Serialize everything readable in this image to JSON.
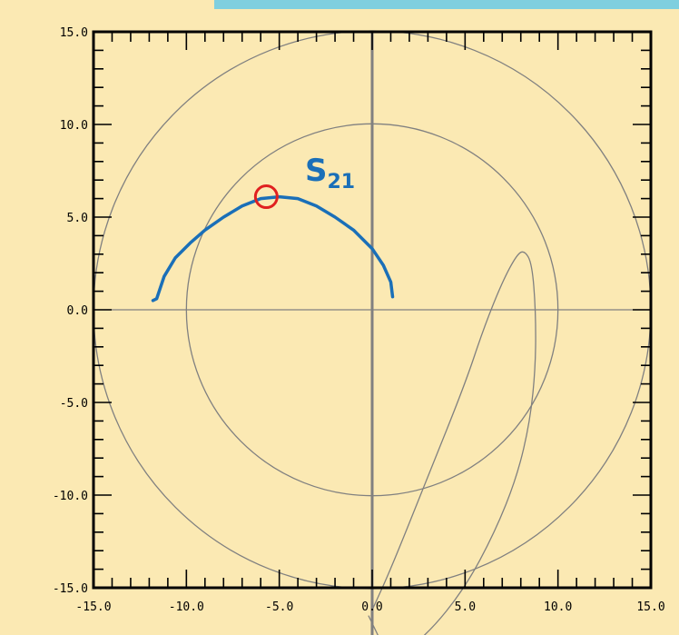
{
  "colors": {
    "background": "#fbe9b3",
    "banner": "#7fcfdf",
    "frame": "#000000",
    "guide": "#808080",
    "series": "#1a6fb8",
    "marker": "#e02020"
  },
  "chart_data": {
    "type": "line",
    "title": "",
    "xlabel": "",
    "ylabel": "",
    "xlim": [
      -15,
      15
    ],
    "ylim": [
      -15,
      15
    ],
    "grid": false,
    "x_ticks": [
      "-15.0",
      "-10.0",
      "-5.0",
      "0.0",
      "5.0",
      "10.0",
      "15.0"
    ],
    "y_ticks": [
      "15.0",
      "10.0",
      "5.0",
      "0.0",
      "-5.0",
      "-10.0",
      "-15.0"
    ],
    "guide_circles": [
      {
        "cx": 0,
        "cy": 0,
        "r": 10
      },
      {
        "cx": 0,
        "cy": 0,
        "r": 15
      }
    ],
    "series": [
      {
        "name": "S21",
        "label_main": "S",
        "label_sub": "21",
        "x": [
          -11.8,
          -11.6,
          -11.2,
          -10.6,
          -9.8,
          -9.0,
          -8.0,
          -7.0,
          -6.0,
          -5.0,
          -4.0,
          -3.0,
          -2.0,
          -1.0,
          0.0,
          0.6,
          1.0,
          1.1
        ],
        "y": [
          0.5,
          0.6,
          1.8,
          2.8,
          3.6,
          4.3,
          5.0,
          5.6,
          6.0,
          6.1,
          6.0,
          5.6,
          5.0,
          4.3,
          3.3,
          2.4,
          1.5,
          0.7
        ]
      }
    ],
    "marker": {
      "x": -5.7,
      "y": 6.1
    },
    "loci": [
      {
        "name": "curve-a",
        "x": [
          0.0,
          1.0,
          3.0,
          5.0,
          6.0,
          7.0,
          7.8,
          8.2,
          8.6,
          8.8,
          8.8,
          8.5,
          7.8,
          6.6,
          5.0,
          3.0,
          1.0,
          -0.2
        ],
        "y": [
          -16.2,
          -14.0,
          -9.0,
          -4.0,
          -1.0,
          1.5,
          3.0,
          3.2,
          2.5,
          0.0,
          -3.0,
          -6.0,
          -9.0,
          -12.0,
          -15.0,
          -17.5,
          -19.0,
          -16.5
        ]
      }
    ]
  }
}
